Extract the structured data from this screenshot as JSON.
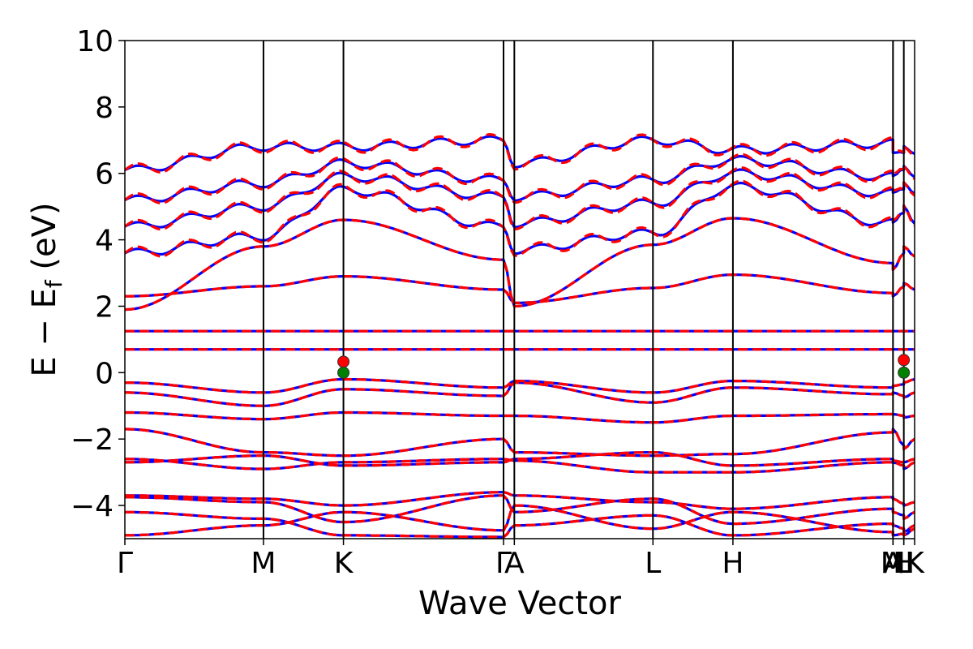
{
  "chart_data": {
    "type": "line",
    "xlabel": "Wave Vector",
    "ylabel_main": "E − E",
    "ylabel_sub": "f",
    "ylabel_unit": " (eV)",
    "ylim": [
      -5,
      10
    ],
    "yticks": [
      -4,
      -2,
      0,
      2,
      4,
      6,
      8,
      10
    ],
    "kpoints": [
      {
        "label": "Γ",
        "x": 0.0
      },
      {
        "label": "M",
        "x": 1.0
      },
      {
        "label": "K",
        "x": 1.577
      },
      {
        "label": "Γ",
        "x": 2.732
      },
      {
        "label": "A",
        "x": 2.81
      },
      {
        "label": "L",
        "x": 3.81
      },
      {
        "label": "H",
        "x": 4.387
      },
      {
        "label": "A",
        "x": 5.542
      },
      {
        "label": "M",
        "x": 5.542
      },
      {
        "label": "L",
        "x": 5.62
      },
      {
        "label": "H",
        "x": 5.62
      },
      {
        "label": "K",
        "x": 5.698
      }
    ],
    "xlim": [
      0,
      5.698
    ],
    "gap_markers": [
      {
        "name": "vbm",
        "x": 1.577,
        "y": 0.0,
        "color": "#008000"
      },
      {
        "name": "cbm",
        "x": 1.577,
        "y": 0.33,
        "color": "#ff0000"
      },
      {
        "name": "vbm",
        "x": 5.62,
        "y": 0.0,
        "color": "#008000"
      },
      {
        "name": "cbm",
        "x": 5.62,
        "y": 0.38,
        "color": "#ff0000"
      }
    ],
    "series": [
      {
        "color": "#0000ff",
        "dash": "solid"
      },
      {
        "color": "#ff0000",
        "dash": "dashed"
      }
    ],
    "bands": [
      {
        "y": [
          -4.9,
          -4.6,
          -4.2,
          -4.75,
          -4.0,
          -4.7,
          -4.2,
          -4.8,
          -4.9,
          -4.85,
          -4.9,
          -4.7
        ]
      },
      {
        "y": [
          -4.2,
          -4.4,
          -4.9,
          -4.95,
          -4.6,
          -4.3,
          -4.9,
          -4.55,
          -4.6,
          -4.7,
          -4.8,
          -4.6
        ]
      },
      {
        "y": [
          -3.75,
          -3.9,
          -4.5,
          -3.7,
          -4.2,
          -3.8,
          -4.55,
          -4.1,
          -4.2,
          -4.3,
          -4.4,
          -4.2
        ]
      },
      {
        "y": [
          -3.7,
          -3.8,
          -4.0,
          -3.6,
          -3.7,
          -3.9,
          -4.1,
          -3.75,
          -3.8,
          -3.95,
          -4.0,
          -3.9
        ]
      },
      {
        "y": [
          -2.6,
          -2.9,
          -2.7,
          -2.6,
          -2.65,
          -3.0,
          -3.0,
          -2.7,
          -2.7,
          -2.8,
          -2.9,
          -2.7
        ]
      },
      {
        "y": [
          -2.7,
          -2.5,
          -2.8,
          -2.7,
          -2.6,
          -2.4,
          -2.8,
          -2.6,
          -2.65,
          -2.7,
          -2.7,
          -2.6
        ]
      },
      {
        "y": [
          -1.7,
          -2.4,
          -2.5,
          -2.0,
          -2.4,
          -2.5,
          -2.45,
          -1.8,
          -1.7,
          -2.2,
          -2.3,
          -2.0
        ]
      },
      {
        "y": [
          -1.2,
          -1.4,
          -1.2,
          -1.3,
          -1.3,
          -1.5,
          -1.3,
          -1.25,
          -1.25,
          -1.3,
          -1.35,
          -1.3
        ]
      },
      {
        "y": [
          -0.6,
          -1.0,
          -0.5,
          -0.7,
          -0.3,
          -0.9,
          -0.45,
          -0.65,
          -0.6,
          -0.7,
          -0.75,
          -0.6
        ]
      },
      {
        "y": [
          -0.3,
          -0.6,
          -0.2,
          -0.45,
          -0.25,
          -0.6,
          -0.25,
          -0.45,
          -0.4,
          -0.35,
          -0.3,
          -0.2
        ]
      },
      {
        "y": [
          0.7,
          0.7,
          0.7,
          0.7,
          0.7,
          0.7,
          0.7,
          0.7,
          0.7,
          0.7,
          0.7,
          0.7
        ]
      },
      {
        "y": [
          1.25,
          1.25,
          1.25,
          1.25,
          1.25,
          1.25,
          1.25,
          1.25,
          1.25,
          1.25,
          1.25,
          1.25
        ]
      },
      {
        "y": [
          2.3,
          2.6,
          2.9,
          2.5,
          2.1,
          2.55,
          2.95,
          2.4,
          2.3,
          2.6,
          2.7,
          2.5
        ]
      },
      {
        "y": [
          1.9,
          3.8,
          4.6,
          3.4,
          2.0,
          3.85,
          4.65,
          3.3,
          3.1,
          3.6,
          3.8,
          3.5
        ]
      },
      {
        "y": [
          3.6,
          4.1,
          5.5,
          4.4,
          3.7,
          4.2,
          5.6,
          4.5,
          4.4,
          4.8,
          5.0,
          4.6
        ]
      },
      {
        "y": [
          4.4,
          5.0,
          5.9,
          5.3,
          4.5,
          5.1,
          6.0,
          5.4,
          5.3,
          5.5,
          5.7,
          5.5
        ]
      },
      {
        "y": [
          5.2,
          5.7,
          6.3,
          5.8,
          5.3,
          5.8,
          6.4,
          5.9,
          5.8,
          6.1,
          6.2,
          6.0
        ]
      },
      {
        "y": [
          6.1,
          6.8,
          6.8,
          7.0,
          6.3,
          7.0,
          6.7,
          6.9,
          6.5,
          6.6,
          6.8,
          6.7
        ]
      }
    ]
  }
}
